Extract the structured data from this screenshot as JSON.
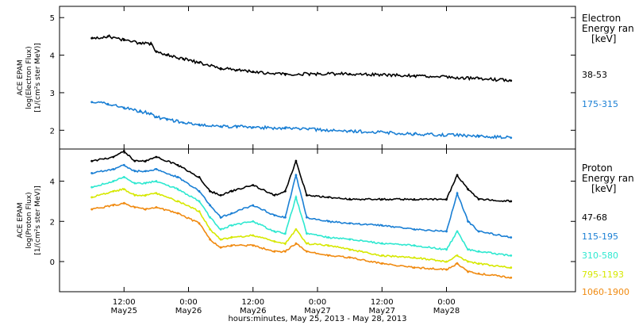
{
  "chart_data": [
    {
      "type": "line",
      "panel": "electron",
      "ylabel_lines": [
        "ACE EPAM",
        "log(Electron Flux)",
        "[1/(cm²s ster MeV)]"
      ],
      "legend_title_lines": [
        "Electron",
        "Energy ran",
        "[keV]"
      ],
      "ylim": [
        1.5,
        5.3
      ],
      "yticks": [
        2,
        3,
        4,
        5
      ],
      "x": [
        0,
        3,
        6,
        9,
        11,
        12,
        14,
        17,
        20,
        24,
        27,
        30,
        36,
        48,
        60,
        72,
        78
      ],
      "series": [
        {
          "name": "38-53",
          "color": "#000000",
          "values": [
            4.45,
            4.5,
            4.4,
            4.32,
            4.3,
            4.1,
            4.0,
            3.9,
            3.8,
            3.65,
            3.6,
            3.55,
            3.5,
            3.5,
            3.45,
            3.38,
            3.32
          ]
        },
        {
          "name": "175-315",
          "color": "#1a7fd4",
          "values": [
            2.75,
            2.7,
            2.6,
            2.5,
            2.45,
            2.35,
            2.3,
            2.2,
            2.15,
            2.1,
            2.1,
            2.08,
            2.05,
            1.98,
            1.9,
            1.85,
            1.8
          ]
        }
      ]
    },
    {
      "type": "line",
      "panel": "proton",
      "ylabel_lines": [
        "ACE EPAM",
        "log(Proton Flux)",
        "[1/(cm²s ster MeV)]"
      ],
      "legend_title_lines": [
        "Proton",
        "Energy ran",
        "[keV]"
      ],
      "ylim": [
        -1.5,
        5.6
      ],
      "yticks": [
        0,
        2,
        4
      ],
      "x": [
        0,
        4,
        6,
        8,
        10,
        12,
        16,
        20,
        22,
        24,
        26,
        30,
        34,
        36,
        38,
        40,
        44,
        48,
        54,
        60,
        66,
        68,
        70,
        72,
        78
      ],
      "series": [
        {
          "name": "47-68",
          "color": "#000000",
          "values": [
            5.0,
            5.2,
            5.5,
            5.0,
            5.0,
            5.2,
            4.8,
            4.2,
            3.5,
            3.3,
            3.5,
            3.8,
            3.3,
            3.5,
            5.0,
            3.3,
            3.2,
            3.1,
            3.1,
            3.1,
            3.1,
            4.3,
            3.6,
            3.1,
            3.0
          ]
        },
        {
          "name": "115-195",
          "color": "#1a7fd4",
          "values": [
            4.4,
            4.6,
            4.8,
            4.5,
            4.5,
            4.6,
            4.2,
            3.5,
            2.8,
            2.2,
            2.4,
            2.8,
            2.3,
            2.2,
            4.3,
            2.2,
            2.0,
            1.9,
            1.8,
            1.6,
            1.5,
            3.4,
            2.0,
            1.5,
            1.2
          ]
        },
        {
          "name": "310-580",
          "color": "#2ee8d0",
          "values": [
            3.7,
            4.0,
            4.2,
            3.9,
            3.9,
            4.0,
            3.6,
            3.0,
            2.2,
            1.6,
            1.8,
            2.0,
            1.5,
            1.4,
            3.2,
            1.4,
            1.2,
            1.1,
            0.9,
            0.8,
            0.6,
            1.5,
            0.6,
            0.5,
            0.3
          ]
        },
        {
          "name": "795-1193",
          "color": "#d6e800",
          "values": [
            3.2,
            3.5,
            3.6,
            3.3,
            3.3,
            3.4,
            3.0,
            2.5,
            1.6,
            1.1,
            1.2,
            1.3,
            1.0,
            0.9,
            1.6,
            0.9,
            0.8,
            0.6,
            0.3,
            0.2,
            0.0,
            0.3,
            0.0,
            -0.1,
            -0.3
          ]
        },
        {
          "name": "1060-1900",
          "color": "#f08a10",
          "values": [
            2.6,
            2.8,
            2.9,
            2.7,
            2.6,
            2.7,
            2.4,
            1.9,
            1.1,
            0.7,
            0.8,
            0.8,
            0.5,
            0.5,
            0.9,
            0.5,
            0.3,
            0.2,
            -0.1,
            -0.3,
            -0.4,
            -0.1,
            -0.5,
            -0.6,
            -0.8
          ]
        }
      ]
    }
  ],
  "x_axis": {
    "xlim": [
      -6,
      90
    ],
    "ticks": [
      {
        "x": 6,
        "line1": "12:00",
        "line2": "May25"
      },
      {
        "x": 18,
        "line1": "0:00",
        "line2": "May26"
      },
      {
        "x": 30,
        "line1": "12:00",
        "line2": "May26"
      },
      {
        "x": 42,
        "line1": "0:00",
        "line2": "May27"
      },
      {
        "x": 54,
        "line1": "12:00",
        "line2": "May27"
      },
      {
        "x": 66,
        "line1": "0:00",
        "line2": "May28"
      }
    ],
    "xlabel": "hours:minutes, May 25, 2013 - May 28, 2013"
  }
}
